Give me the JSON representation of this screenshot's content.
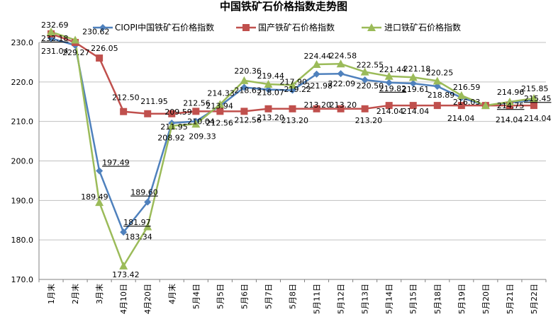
{
  "chart_data": {
    "type": "line",
    "title": "中国铁矿石价格指数走势图",
    "categories": [
      "1月末",
      "2月末",
      "3月末",
      "4月10日",
      "4月20日",
      "4月末",
      "5月4日",
      "5月5日",
      "5月6日",
      "5月7日",
      "5月8日",
      "5月11日",
      "5月12日",
      "5月13日",
      "5月14日",
      "5月15日",
      "5月18日",
      "5月19日",
      "5月20日",
      "5月21日",
      "5月22日"
    ],
    "ylim": [
      170,
      230
    ],
    "yticks": [
      "170.0",
      "180.0",
      "190.0",
      "200.0",
      "210.0",
      "220.0",
      "230.0"
    ],
    "grid": true,
    "legend_position": "top",
    "series": [
      {
        "name": "CIOPI中国铁矿石价格指数",
        "color": "#4f81bd",
        "marker": "diamond",
        "values": [
          231.04,
          229.27,
          197.49,
          181.97,
          189.6,
          209.59,
          210.04,
          213.94,
          218.63,
          218.07,
          217.9,
          221.98,
          222.09,
          220.5,
          219.82,
          219.61,
          218.89,
          216.03,
          214.04,
          214.75,
          215.45
        ]
      },
      {
        "name": "国产铁矿石价格指数",
        "color": "#c0504d",
        "marker": "square",
        "values": [
          232.18,
          230.0,
          226.05,
          212.5,
          211.95,
          211.95,
          212.56,
          212.56,
          212.56,
          213.2,
          213.2,
          213.2,
          213.2,
          213.2,
          214.04,
          214.04,
          214.04,
          214.04,
          214.04,
          214.04,
          214.04
        ]
      },
      {
        "name": "进口铁矿石价格指数",
        "color": "#9bbb59",
        "marker": "triangle",
        "values": [
          232.69,
          230.62,
          189.49,
          173.42,
          183.34,
          208.92,
          209.33,
          214.33,
          220.36,
          219.44,
          219.22,
          224.44,
          224.58,
          222.55,
          221.44,
          221.18,
          220.25,
          216.59,
          214.04,
          214.96,
          215.85
        ]
      }
    ],
    "data_labels": [
      {
        "text": "232.69",
        "x": 0,
        "y": 232.69,
        "dx": -14,
        "dy": -6
      },
      {
        "text": "232.18",
        "x": 0,
        "y": 232.18,
        "dx": -14,
        "dy": 10,
        "underline": true
      },
      {
        "text": "231.04",
        "x": 0,
        "y": 231.04,
        "dx": -14,
        "dy": 22
      },
      {
        "text": "230.62",
        "x": 1,
        "y": 230.62,
        "dx": 10,
        "dy": -8
      },
      {
        "text": "229.27",
        "x": 1,
        "y": 229.27,
        "dx": -18,
        "dy": 14
      },
      {
        "text": "226.05",
        "x": 2,
        "y": 226.05,
        "dx": -12,
        "dy": -10
      },
      {
        "text": "197.49",
        "x": 2,
        "y": 197.49,
        "dx": 4,
        "dy": -8,
        "underline": true
      },
      {
        "text": "189.49",
        "x": 2,
        "y": 189.49,
        "dx": -26,
        "dy": -4
      },
      {
        "text": "212.50",
        "x": 3,
        "y": 212.5,
        "dx": -16,
        "dy": -16
      },
      {
        "text": "181.97",
        "x": 3,
        "y": 181.97,
        "dx": 0,
        "dy": -10,
        "underline": true
      },
      {
        "text": "173.42",
        "x": 3,
        "y": 173.42,
        "dx": -16,
        "dy": 16
      },
      {
        "text": "211.95",
        "x": 4,
        "y": 211.95,
        "dx": -10,
        "dy": -14
      },
      {
        "text": "189.60",
        "x": 4,
        "y": 189.6,
        "dx": -24,
        "dy": -10,
        "underline": true
      },
      {
        "text": "183.34",
        "x": 4,
        "y": 183.34,
        "dx": -32,
        "dy": 18
      },
      {
        "text": "209.59",
        "x": 5,
        "y": 209.59,
        "dx": -10,
        "dy": -12
      },
      {
        "text": "211.95",
        "x": 5,
        "y": 211.95,
        "dx": -16,
        "dy": 22
      },
      {
        "text": "208.92",
        "x": 5,
        "y": 208.92,
        "dx": -20,
        "dy": 21
      },
      {
        "text": "212.56",
        "x": 6,
        "y": 212.56,
        "dx": -18,
        "dy": -8
      },
      {
        "text": "210.04",
        "x": 6,
        "y": 210.04,
        "dx": -12,
        "dy": 4
      },
      {
        "text": "209.33",
        "x": 6,
        "y": 209.33,
        "dx": -10,
        "dy": 21
      },
      {
        "text": "214.33",
        "x": 7,
        "y": 214.33,
        "dx": -18,
        "dy": -12
      },
      {
        "text": "213.94",
        "x": 7,
        "y": 213.94,
        "dx": -20,
        "dy": 4
      },
      {
        "text": "212.56",
        "x": 7,
        "y": 212.56,
        "dx": -20,
        "dy": 20
      },
      {
        "text": "220.36",
        "x": 8,
        "y": 220.36,
        "dx": -14,
        "dy": -10
      },
      {
        "text": "218.63",
        "x": 8,
        "y": 218.63,
        "dx": -14,
        "dy": 8
      },
      {
        "text": "212.56",
        "x": 8,
        "y": 212.56,
        "dx": -14,
        "dy": 16
      },
      {
        "text": "219.44",
        "x": 9,
        "y": 219.44,
        "dx": -16,
        "dy": -8
      },
      {
        "text": "218.07",
        "x": 9,
        "y": 218.07,
        "dx": -16,
        "dy": 8
      },
      {
        "text": "213.20",
        "x": 9,
        "y": 213.2,
        "dx": -16,
        "dy": 16
      },
      {
        "text": "217.90",
        "x": 10,
        "y": 217.9,
        "dx": -18,
        "dy": -8
      },
      {
        "text": "219.22",
        "x": 10,
        "y": 219.22,
        "dx": -12,
        "dy": 10
      },
      {
        "text": "213.20",
        "x": 10,
        "y": 213.2,
        "dx": -16,
        "dy": 20
      },
      {
        "text": "224.44",
        "x": 11,
        "y": 224.44,
        "dx": -18,
        "dy": -8
      },
      {
        "text": "213.20",
        "x": 11,
        "y": 213.2,
        "dx": -18,
        "dy": -2
      },
      {
        "text": "221.98",
        "x": 11,
        "y": 221.98,
        "dx": -16,
        "dy": 20
      },
      {
        "text": "224.58",
        "x": 12,
        "y": 224.58,
        "dx": -16,
        "dy": -8
      },
      {
        "text": "213.20",
        "x": 12,
        "y": 213.2,
        "dx": -16,
        "dy": -2
      },
      {
        "text": "222.09",
        "x": 12,
        "y": 222.09,
        "dx": -18,
        "dy": 18
      },
      {
        "text": "222.55",
        "x": 13,
        "y": 222.55,
        "dx": -12,
        "dy": -6
      },
      {
        "text": "220.50",
        "x": 13,
        "y": 220.5,
        "dx": -12,
        "dy": 12
      },
      {
        "text": "213.20",
        "x": 13,
        "y": 213.2,
        "dx": -14,
        "dy": 20
      },
      {
        "text": "221.44",
        "x": 14,
        "y": 221.44,
        "dx": -14,
        "dy": -6
      },
      {
        "text": "219.82",
        "x": 14,
        "y": 219.82,
        "dx": -14,
        "dy": 12,
        "underline": true
      },
      {
        "text": "214.04",
        "x": 14,
        "y": 214.04,
        "dx": -18,
        "dy": 12
      },
      {
        "text": "221.18",
        "x": 15,
        "y": 221.18,
        "dx": -14,
        "dy": -8
      },
      {
        "text": "219.61",
        "x": 15,
        "y": 219.61,
        "dx": -16,
        "dy": 12
      },
      {
        "text": "214.04",
        "x": 15,
        "y": 214.04,
        "dx": -16,
        "dy": 12
      },
      {
        "text": "220.25",
        "x": 16,
        "y": 220.25,
        "dx": -16,
        "dy": -8
      },
      {
        "text": "218.89",
        "x": 16,
        "y": 218.89,
        "dx": -14,
        "dy": 16
      },
      {
        "text": "216.59",
        "x": 17,
        "y": 216.59,
        "dx": -12,
        "dy": -8
      },
      {
        "text": "216.03",
        "x": 17,
        "y": 216.03,
        "dx": -12,
        "dy": 10
      },
      {
        "text": "214.04",
        "x": 17,
        "y": 214.04,
        "dx": -20,
        "dy": 22
      },
      {
        "text": "214.96",
        "x": 19,
        "y": 214.96,
        "dx": -18,
        "dy": -10
      },
      {
        "text": "214.75",
        "x": 19,
        "y": 214.75,
        "dx": -18,
        "dy": 8,
        "underline": true
      },
      {
        "text": "214.04",
        "x": 19,
        "y": 214.04,
        "dx": -20,
        "dy": 24
      },
      {
        "text": "215.85",
        "x": 20,
        "y": 215.85,
        "dx": -18,
        "dy": -10
      },
      {
        "text": "215.45",
        "x": 20,
        "y": 215.45,
        "dx": -14,
        "dy": 2,
        "underline": true
      },
      {
        "text": "214.04",
        "x": 20,
        "y": 214.04,
        "dx": -14,
        "dy": 22
      }
    ]
  }
}
